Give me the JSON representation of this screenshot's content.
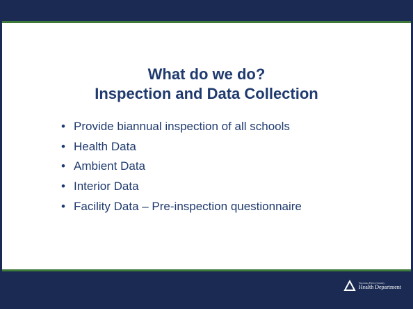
{
  "title": [
    "What do we do?",
    "Inspection and Data Collection"
  ],
  "bullets": [
    "Provide biannual inspection of all schools",
    "Health Data",
    "Ambient Data",
    "Interior Data",
    "Facility Data – Pre-inspection questionnaire"
  ],
  "logo": {
    "line1": "Tacoma–Pierce County",
    "line2": "Health Department"
  }
}
